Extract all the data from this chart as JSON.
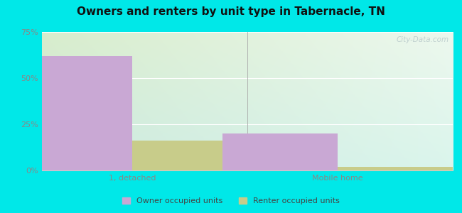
{
  "title": "Owners and renters by unit type in Tabernacle, TN",
  "categories": [
    "1, detached",
    "Mobile home"
  ],
  "owner_values": [
    62,
    20
  ],
  "renter_values": [
    16,
    2
  ],
  "owner_color": "#c9a8d4",
  "renter_color": "#c8cc8a",
  "ylim": [
    0,
    75
  ],
  "yticks": [
    0,
    25,
    50,
    75
  ],
  "yticklabels": [
    "0%",
    "25%",
    "50%",
    "75%"
  ],
  "bg_color_topleft": "#d4ecd0",
  "bg_color_topright": "#e8f8f0",
  "bg_color_bottomleft": "#c8eee0",
  "bg_color_bottomright": "#d8f4ec",
  "outer_color": "#00e8e8",
  "legend_owner": "Owner occupied units",
  "legend_renter": "Renter occupied units",
  "bar_width": 0.28,
  "watermark": "City-Data.com",
  "grid_color": "#e8e8e8",
  "tick_color": "#888888",
  "spine_color": "#cccccc"
}
